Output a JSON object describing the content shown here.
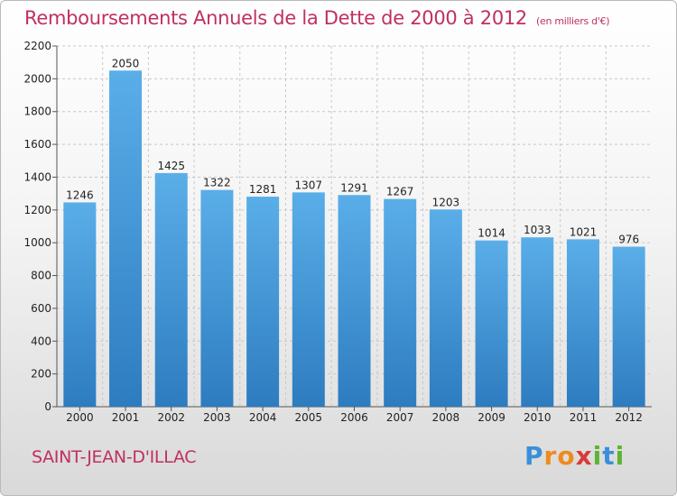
{
  "title": "Remboursements Annuels de la Dette de 2000 à 2012",
  "subtitle": "(en milliers d'€)",
  "city": "SAINT-JEAN-D'ILLAC",
  "logo": {
    "text": "Proxiti",
    "letters": [
      "P",
      "r",
      "o",
      "x",
      "i",
      "t",
      "i"
    ],
    "colors": [
      "#3a8fd9",
      "#f08a1e",
      "#f08a1e",
      "#d93a3a",
      "#5cb531",
      "#3a8fd9",
      "#5cb531"
    ]
  },
  "colors": {
    "title": "#c0305f",
    "bar_top": "#5aaee8",
    "bar_bottom": "#2d7cc0",
    "grid": "#c8c8c8",
    "axis": "#555555"
  },
  "chart_data": {
    "type": "bar",
    "title": "Remboursements Annuels de la Dette de 2000 à 2012",
    "subtitle": "(en milliers d'€)",
    "xlabel": "",
    "ylabel": "",
    "categories": [
      "2000",
      "2001",
      "2002",
      "2003",
      "2004",
      "2005",
      "2006",
      "2007",
      "2008",
      "2009",
      "2010",
      "2011",
      "2012"
    ],
    "values": [
      1246,
      2050,
      1425,
      1322,
      1281,
      1307,
      1291,
      1267,
      1203,
      1014,
      1033,
      1021,
      976
    ],
    "data_labels": [
      "1246",
      "2050",
      "1425",
      "1322",
      "1281",
      "1307",
      "1291",
      "1267",
      "1203",
      "1014",
      "1033",
      "1021",
      "976"
    ],
    "ylim": [
      0,
      2200
    ],
    "yticks": [
      0,
      200,
      400,
      600,
      800,
      1000,
      1200,
      1400,
      1600,
      1800,
      2000,
      2200
    ],
    "ytick_labels": [
      "0",
      "200",
      "400",
      "600",
      "800",
      "1000",
      "1200",
      "1400",
      "1600",
      "1800",
      "2000",
      "2200"
    ],
    "grid": true,
    "legend": "none"
  }
}
